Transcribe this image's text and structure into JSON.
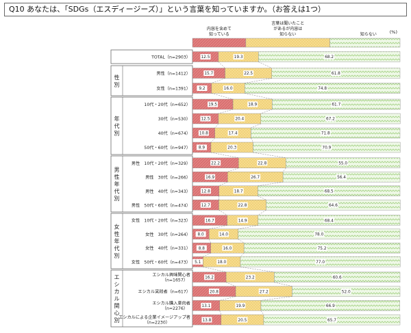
{
  "title": "Q10  あなたは、「SDGs（エスディージーズ）」という言葉を知っていますか。（お答えは1つ）",
  "colors": {
    "seg1": "#e17b7b",
    "seg2": "#f5d98a",
    "seg3": "#eaf6de",
    "seg3_stroke": "#b7d99b",
    "frame": "#666666"
  },
  "chart_data": {
    "type": "bar",
    "orientation": "horizontal",
    "stacked": true,
    "unit": "(%)",
    "legend": [
      {
        "key": "seg1",
        "lines": [
          "内容を含めて",
          "知っている"
        ]
      },
      {
        "key": "seg2",
        "lines": [
          "言葉は聞いたこと",
          "があるが内容は",
          "知らない"
        ]
      },
      {
        "key": "seg3",
        "lines": [
          "知らない"
        ]
      }
    ],
    "groups": [
      {
        "label": "",
        "rows": [
          {
            "label": "TOTAL（n=2903）",
            "values": [
              12.5,
              19.3,
              68.2
            ]
          }
        ]
      },
      {
        "label": "性別",
        "rows": [
          {
            "label": "男性（n=1412）",
            "values": [
              15.7,
              22.5,
              61.8
            ]
          },
          {
            "label": "女性（n=1391）",
            "values": [
              9.2,
              16.0,
              74.8
            ]
          }
        ]
      },
      {
        "label": "年代別",
        "rows": [
          {
            "label": "10代・20代（n=652）",
            "values": [
              19.5,
              18.9,
              61.7
            ]
          },
          {
            "label": "30代（n=530）",
            "values": [
              12.5,
              20.4,
              67.2
            ]
          },
          {
            "label": "40代（n=674）",
            "values": [
              10.8,
              17.4,
              71.8
            ]
          },
          {
            "label": "50代・60代（n=947）",
            "values": [
              8.9,
              20.3,
              70.9
            ]
          }
        ]
      },
      {
        "label": "男性年代別",
        "rows": [
          {
            "label": "男性　10代・20代（n=329）",
            "values": [
              22.2,
              22.8,
              55.0
            ]
          },
          {
            "label": "男性　30代（n=266）",
            "values": [
              16.9,
              26.7,
              56.4
            ]
          },
          {
            "label": "男性　40代（n=343）",
            "values": [
              12.8,
              18.7,
              68.5
            ]
          },
          {
            "label": "男性　50代・60代（n=474）",
            "values": [
              12.7,
              22.8,
              64.6
            ]
          }
        ]
      },
      {
        "label": "女性年代別",
        "rows": [
          {
            "label": "女性　10代・20代（n=323）",
            "values": [
              16.7,
              14.9,
              68.4
            ]
          },
          {
            "label": "女性　30代（n=264）",
            "values": [
              8.0,
              14.0,
              78.0
            ]
          },
          {
            "label": "女性　40代（n=331）",
            "values": [
              8.8,
              16.0,
              75.2
            ]
          },
          {
            "label": "女性　50代・60代（n=473）",
            "values": [
              5.1,
              18.0,
              77.0
            ]
          }
        ]
      },
      {
        "label": "エシカル関心別",
        "rows": [
          {
            "label": "エシカル興味関心者（n=1657）",
            "values": [
              16.2,
              23.2,
              60.6
            ]
          },
          {
            "label": "エシカル実践者（n=617）",
            "values": [
              20.8,
              27.2,
              52.0
            ]
          },
          {
            "label": "エシカル購入意向者（n=2276）",
            "values": [
              13.1,
              19.9,
              66.9
            ]
          },
          {
            "label": "エシカルによる企業イメージアップ者（n=2230）",
            "values": [
              13.8,
              20.5,
              65.7
            ]
          }
        ]
      }
    ]
  }
}
